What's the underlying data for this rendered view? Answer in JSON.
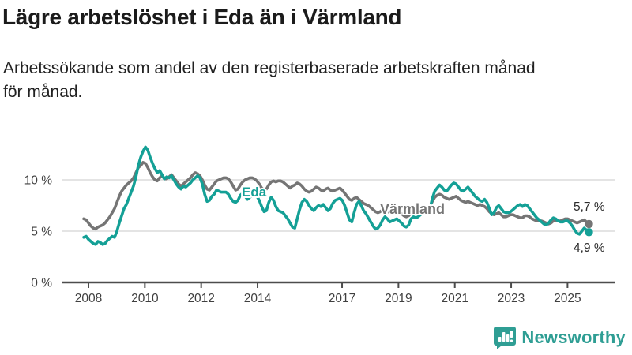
{
  "header": {
    "title": "Lägre arbetslöshet i Eda än i Värmland",
    "subtitle_line1": "Arbetssökande som andel av den registerbaserade arbetskraften månad",
    "subtitle_line2": "för månad."
  },
  "footer": {
    "brand": "Newsworthy",
    "brand_color": "#2f9e94",
    "logo_icon": "bar-chart-speech-bubble"
  },
  "colors": {
    "eda": "#14a096",
    "varmland": "#757575",
    "grid": "#dcdcdc",
    "axis": "#4c4c4c",
    "tick_label": "#3f3f3f",
    "end_label": "#2b2b2b"
  },
  "chart_data": {
    "type": "line",
    "title": "Lägre arbetslöshet i Eda än i Värmland",
    "xlabel": "",
    "ylabel": "",
    "unit": "%",
    "frequency": "monthly",
    "x_start": "2008-01",
    "x_end": "2025-10",
    "ylim": [
      0,
      14
    ],
    "grid": "horizontal",
    "legend_position": "inline-labels",
    "yticks": [
      {
        "value": 0,
        "label": "0 %"
      },
      {
        "value": 5,
        "label": "5 %"
      },
      {
        "value": 10,
        "label": "10 %"
      }
    ],
    "xticks": [
      {
        "year": 2008,
        "label": "2008"
      },
      {
        "year": 2010,
        "label": "2010"
      },
      {
        "year": 2012,
        "label": "2012"
      },
      {
        "year": 2014,
        "label": "2014"
      },
      {
        "year": 2017,
        "label": "2017"
      },
      {
        "year": 2019,
        "label": "2019"
      },
      {
        "year": 2021,
        "label": "2021"
      },
      {
        "year": 2023,
        "label": "2023"
      },
      {
        "year": 2025,
        "label": "2025"
      }
    ],
    "series": [
      {
        "name": "Eda",
        "color": "#14a096",
        "end_label": "4,9 %",
        "end_value": 4.9,
        "values": [
          4.4,
          4.5,
          4.2,
          4.0,
          3.8,
          3.7,
          4.0,
          3.9,
          3.7,
          3.8,
          4.1,
          4.3,
          4.5,
          4.4,
          5.0,
          5.8,
          6.5,
          7.2,
          7.6,
          8.2,
          8.8,
          9.4,
          10.3,
          11.4,
          12.2,
          12.8,
          13.2,
          12.9,
          12.2,
          11.6,
          11.1,
          10.7,
          10.9,
          10.5,
          10.1,
          10.3,
          10.2,
          10.4,
          10.0,
          9.6,
          9.3,
          9.1,
          9.4,
          9.3,
          9.5,
          9.7,
          10.0,
          10.2,
          10.4,
          10.2,
          9.6,
          8.6,
          7.9,
          8.0,
          8.4,
          8.6,
          9.0,
          8.9,
          8.8,
          8.8,
          8.8,
          8.6,
          8.2,
          7.9,
          7.8,
          8.0,
          8.5,
          8.7,
          8.4,
          8.1,
          8.3,
          8.5,
          8.6,
          8.4,
          8.0,
          7.4,
          6.9,
          7.0,
          7.8,
          8.3,
          8.0,
          7.4,
          7.0,
          6.9,
          6.8,
          6.5,
          6.2,
          5.8,
          5.4,
          5.3,
          6.2,
          7.1,
          7.8,
          8.1,
          7.9,
          7.5,
          7.2,
          7.0,
          7.3,
          7.5,
          7.4,
          7.6,
          7.3,
          7.0,
          7.2,
          7.7,
          8.0,
          8.1,
          8.2,
          8.0,
          7.5,
          6.8,
          6.1,
          5.9,
          6.8,
          7.6,
          7.9,
          7.5,
          7.0,
          6.7,
          6.3,
          5.9,
          5.5,
          5.2,
          5.3,
          5.6,
          6.1,
          6.4,
          6.2,
          5.9,
          6.0,
          6.1,
          6.2,
          6.0,
          5.8,
          5.5,
          5.4,
          5.6,
          6.2,
          6.4,
          6.3,
          6.4,
          6.6,
          6.8,
          6.9,
          6.8,
          7.2,
          8.2,
          8.9,
          9.2,
          9.5,
          9.3,
          9.0,
          8.9,
          9.2,
          9.5,
          9.7,
          9.6,
          9.3,
          9.0,
          8.9,
          9.1,
          9.3,
          9.0,
          8.7,
          8.4,
          8.2,
          8.0,
          7.9,
          8.1,
          7.8,
          7.2,
          6.6,
          6.8,
          7.3,
          7.5,
          7.2,
          6.9,
          6.8,
          6.8,
          6.9,
          7.1,
          7.3,
          7.5,
          7.6,
          7.4,
          7.6,
          7.5,
          7.2,
          6.9,
          6.6,
          6.3,
          6.1,
          5.9,
          5.7,
          5.6,
          5.8,
          6.1,
          6.3,
          6.2,
          6.0,
          5.9,
          5.9,
          6.0,
          6.0,
          5.8,
          5.5,
          5.1,
          4.8,
          4.7,
          5.0,
          5.3,
          5.1,
          4.9
        ]
      },
      {
        "name": "Värmland",
        "color": "#757575",
        "end_label": "5,7 %",
        "end_value": 5.7,
        "values": [
          6.2,
          6.1,
          5.8,
          5.5,
          5.3,
          5.2,
          5.4,
          5.5,
          5.6,
          5.8,
          6.1,
          6.4,
          6.8,
          7.2,
          7.8,
          8.4,
          8.9,
          9.2,
          9.5,
          9.7,
          9.9,
          10.2,
          10.7,
          11.2,
          11.4,
          11.7,
          11.6,
          11.2,
          10.7,
          10.3,
          10.0,
          9.9,
          10.2,
          10.4,
          10.1,
          10.1,
          10.3,
          10.5,
          10.2,
          9.9,
          9.6,
          9.4,
          9.6,
          9.8,
          10.0,
          10.2,
          10.5,
          10.7,
          10.6,
          10.4,
          10.0,
          9.5,
          9.1,
          9.0,
          9.3,
          9.6,
          9.9,
          10.0,
          10.1,
          10.2,
          10.2,
          10.1,
          9.8,
          9.4,
          9.0,
          9.1,
          9.5,
          9.8,
          10.0,
          10.1,
          10.2,
          10.2,
          10.1,
          9.9,
          9.6,
          9.2,
          9.0,
          9.1,
          9.5,
          9.8,
          9.9,
          9.8,
          9.9,
          9.9,
          9.8,
          9.6,
          9.4,
          9.2,
          9.4,
          9.5,
          9.7,
          9.6,
          9.4,
          9.1,
          8.9,
          8.8,
          8.9,
          9.1,
          9.3,
          9.2,
          9.0,
          8.9,
          9.1,
          9.2,
          9.0,
          8.9,
          9.0,
          9.1,
          9.2,
          9.0,
          8.7,
          8.4,
          8.1,
          8.0,
          8.2,
          8.3,
          8.1,
          7.9,
          7.7,
          7.6,
          7.5,
          7.3,
          7.1,
          6.9,
          6.8,
          6.9,
          7.1,
          7.2,
          7.0,
          6.8,
          6.7,
          6.7,
          6.8,
          6.8,
          6.7,
          6.5,
          6.4,
          6.5,
          6.8,
          6.9,
          6.8,
          6.7,
          6.8,
          7.0,
          7.1,
          7.1,
          7.4,
          7.9,
          8.3,
          8.5,
          8.6,
          8.5,
          8.3,
          8.2,
          8.1,
          8.2,
          8.3,
          8.4,
          8.2,
          8.0,
          7.9,
          7.8,
          7.9,
          7.8,
          7.7,
          7.6,
          7.5,
          7.6,
          7.5,
          7.4,
          7.2,
          6.9,
          6.7,
          6.6,
          6.7,
          6.8,
          6.6,
          6.4,
          6.4,
          6.5,
          6.6,
          6.6,
          6.5,
          6.4,
          6.3,
          6.3,
          6.5,
          6.5,
          6.4,
          6.2,
          6.1,
          6.0,
          6.0,
          6.0,
          5.9,
          5.8,
          5.7,
          5.8,
          6.0,
          6.1,
          6.0,
          6.0,
          6.1,
          6.2,
          6.2,
          6.1,
          6.0,
          5.9,
          5.8,
          5.9,
          6.0,
          6.1,
          5.9,
          5.7
        ]
      }
    ]
  }
}
